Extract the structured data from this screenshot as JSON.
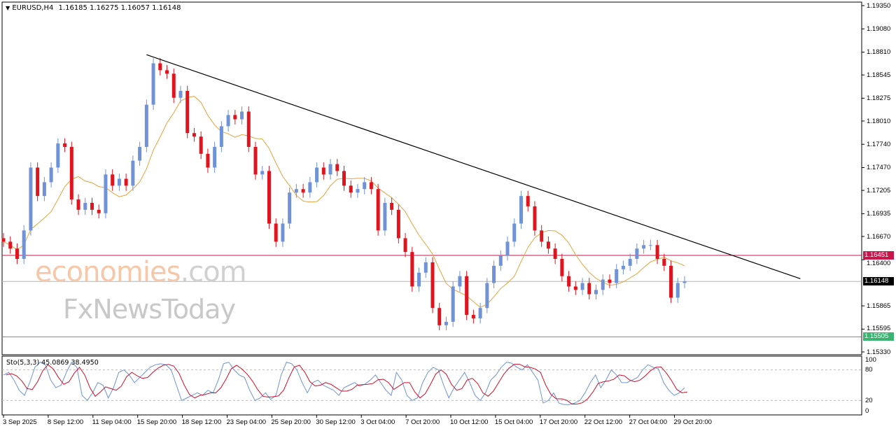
{
  "header": {
    "symbol": "EURUSD,H4",
    "ohlc": "1.16185 1.16275 1.16057 1.16148",
    "menu_icon": "triangle-down-icon"
  },
  "watermark": {
    "brand1": "economies",
    "brand1_suffix": ".com",
    "brand2": "FxNewsToday"
  },
  "colors": {
    "bull": "#6f93d6",
    "bear": "#e0141e",
    "ma": "#e8a33c",
    "trendline": "#000000",
    "resistance": "#c8164a",
    "current": "#b4b4b4",
    "support": "#3cb371",
    "sto_main": "#6f93d6",
    "sto_signal": "#d0102a"
  },
  "chart_data": {
    "type": "candlestick",
    "symbol": "EURUSD",
    "timeframe": "H4",
    "ylim": [
      1.1533,
      1.1935
    ],
    "y_ticks": [
      "1.19350",
      "1.19080",
      "1.18810",
      "1.18545",
      "1.18275",
      "1.18010",
      "1.17740",
      "1.17470",
      "1.17205",
      "1.16935",
      "1.16670",
      "1.16400",
      "1.15865",
      "1.15595",
      "1.15330"
    ],
    "x_ticks": [
      "3 Sep 2025",
      "8 Sep 12:00",
      "11 Sep 04:00",
      "15 Sep 20:00",
      "18 Sep 12:00",
      "23 Sep 04:00",
      "25 Sep 20:00",
      "30 Sep 12:00",
      "3 Oct 04:00",
      "7 Oct 20:00",
      "10 Oct 12:00",
      "15 Oct 04:00",
      "17 Oct 20:00",
      "22 Oct 12:00",
      "27 Oct 04:00",
      "29 Oct 20:00"
    ],
    "closes": [
      1.1661,
      1.1653,
      1.1641,
      1.1674,
      1.1747,
      1.1714,
      1.173,
      1.1747,
      1.1775,
      1.1771,
      1.171,
      1.1698,
      1.1706,
      1.1698,
      1.1694,
      1.1739,
      1.1726,
      1.1734,
      1.1726,
      1.1755,
      1.1771,
      1.182,
      1.1868,
      1.186,
      1.1856,
      1.1828,
      1.1836,
      1.1787,
      1.1783,
      1.1763,
      1.1747,
      1.1771,
      1.1795,
      1.1808,
      1.1803,
      1.1812,
      1.1771,
      1.1739,
      1.1743,
      1.1682,
      1.1661,
      1.1682,
      1.1718,
      1.1722,
      1.1718,
      1.173,
      1.1747,
      1.1739,
      1.1751,
      1.1743,
      1.1726,
      1.1718,
      1.1722,
      1.173,
      1.1722,
      1.1674,
      1.1706,
      1.1698,
      1.1665,
      1.1649,
      1.1609,
      1.1625,
      1.1637,
      1.1584,
      1.1564,
      1.1568,
      1.1609,
      1.1621,
      1.1576,
      1.1572,
      1.1584,
      1.1613,
      1.1633,
      1.1645,
      1.1661,
      1.1682,
      1.1714,
      1.1702,
      1.1674,
      1.1661,
      1.1653,
      1.1641,
      1.1621,
      1.1609,
      1.1605,
      1.1613,
      1.16,
      1.1605,
      1.1617,
      1.1613,
      1.1629,
      1.1633,
      1.1641,
      1.1653,
      1.1657,
      1.1657,
      1.1641,
      1.1633,
      1.1596,
      1.1613,
      1.16148
    ],
    "trendline": {
      "start_bar": 21,
      "start_price": 1.1878,
      "end_bar": 117,
      "end_price": 1.1618
    },
    "horizontal_lines": [
      {
        "price": 1.16451,
        "label": "1.16451",
        "role": "resistance"
      },
      {
        "price": 1.16148,
        "label": "1.16148",
        "role": "current"
      },
      {
        "price": 1.15505,
        "label": "1.15505",
        "role": "support"
      }
    ],
    "indicator": {
      "label": "Sto(5,3,3) 45.0869 38.4950",
      "ylim": [
        0,
        100
      ],
      "levels": [
        20,
        80
      ],
      "level_labels": [
        "100",
        "80",
        "20",
        "0"
      ],
      "main": [
        70,
        75,
        60,
        40,
        30,
        55,
        85,
        95,
        90,
        60,
        45,
        50,
        75,
        95,
        85,
        30,
        20,
        35,
        55,
        50,
        25,
        45,
        75,
        80,
        70,
        55,
        65,
        75,
        85,
        90,
        92,
        90,
        80,
        50,
        20,
        25,
        30,
        35,
        30,
        40,
        35,
        60,
        92,
        95,
        80,
        70,
        65,
        40,
        20,
        25,
        35,
        22,
        30,
        70,
        95,
        92,
        80,
        55,
        35,
        55,
        60,
        50,
        45,
        40,
        30,
        45,
        50,
        55,
        48,
        52,
        60,
        70,
        55,
        40,
        30,
        75,
        60,
        30,
        20,
        25,
        55,
        75,
        85,
        80,
        50,
        25,
        45,
        60,
        75,
        55,
        30,
        20,
        35,
        60,
        70,
        85,
        95,
        93,
        85,
        80,
        90,
        75,
        60,
        15,
        20,
        35,
        15,
        12,
        12,
        15,
        20,
        35,
        55,
        70,
        45,
        60,
        80,
        70,
        55,
        55,
        60,
        65,
        80,
        90,
        85,
        82,
        55,
        40,
        30,
        35,
        45
      ]
    }
  }
}
